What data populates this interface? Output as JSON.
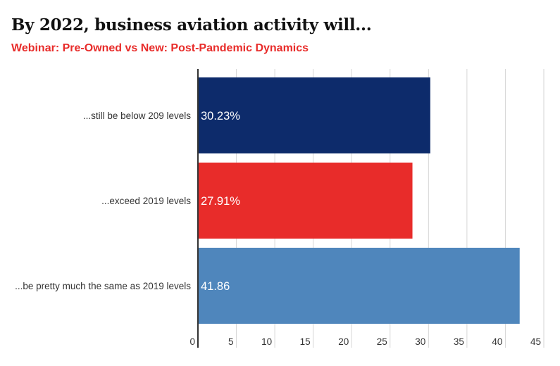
{
  "chart_data": {
    "type": "bar",
    "orientation": "horizontal",
    "title": "By 2022, business aviation activity will...",
    "subtitle": "Webinar: Pre-Owned vs New: Post-Pandemic Dynamics",
    "categories": [
      "...still be below 209 levels",
      "...exceed 2019 levels",
      "...be pretty much the same as 2019 levels"
    ],
    "values": [
      30.23,
      27.91,
      41.86
    ],
    "data_labels": [
      "30.23%",
      "27.91%",
      "41.86"
    ],
    "colors": [
      "#0d2b6b",
      "#e82c2a",
      "#4f86bc"
    ],
    "xlim": [
      0,
      45
    ],
    "ticks": [
      0,
      5,
      10,
      15,
      20,
      25,
      30,
      35,
      40,
      45
    ],
    "grid": true,
    "xlabel": "",
    "ylabel": ""
  }
}
